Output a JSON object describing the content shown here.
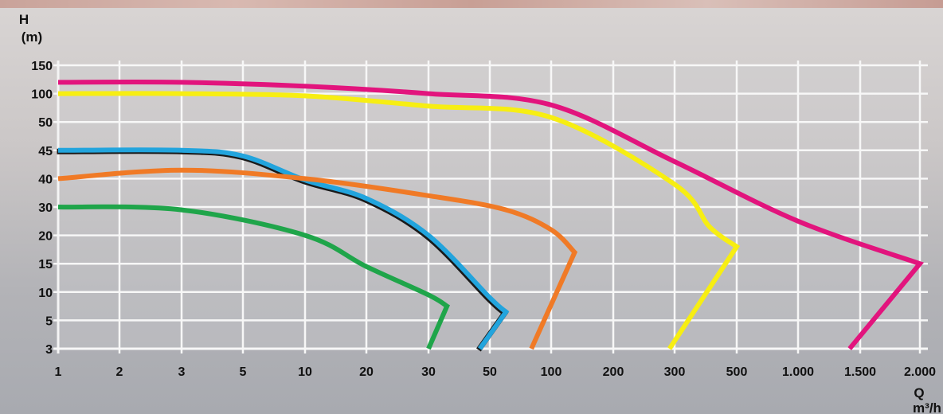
{
  "chart_data": {
    "type": "line",
    "x_axis": {
      "label_top": "Q",
      "label_bottom": "m³/h",
      "ticks": [
        "1",
        "2",
        "3",
        "5",
        "10",
        "20",
        "30",
        "50",
        "100",
        "200",
        "300",
        "500",
        "1.000",
        "1.500",
        "2.000"
      ]
    },
    "y_axis": {
      "label_top": "H",
      "label_bottom": "(m)",
      "ticks": [
        "150",
        "100",
        "50",
        "45",
        "40",
        "30",
        "20",
        "15",
        "10",
        "5",
        "3"
      ]
    },
    "grid": true,
    "series": [
      {
        "color": "#e2147d",
        "points": [
          [
            1,
            120
          ],
          [
            3,
            120
          ],
          [
            10,
            113
          ],
          [
            30,
            100
          ],
          [
            100,
            80
          ],
          [
            300,
            43
          ],
          [
            1000,
            25
          ],
          [
            2000,
            15
          ],
          [
            1400,
            3
          ]
        ]
      },
      {
        "color": "#f7ee12",
        "points": [
          [
            1,
            100
          ],
          [
            3,
            100
          ],
          [
            10,
            96
          ],
          [
            30,
            78
          ],
          [
            100,
            58
          ],
          [
            300,
            38
          ],
          [
            400,
            23
          ],
          [
            500,
            18
          ],
          [
            290,
            3
          ]
        ]
      },
      {
        "color": "#22a4dd",
        "points": [
          [
            1,
            45
          ],
          [
            3,
            45
          ],
          [
            5,
            44
          ],
          [
            10,
            39.5
          ],
          [
            20,
            33
          ],
          [
            30,
            20
          ],
          [
            50,
            9
          ],
          [
            60,
            6.5
          ],
          [
            46,
            3
          ]
        ]
      },
      {
        "color": "#f07a26",
        "points": [
          [
            1,
            40
          ],
          [
            3,
            41.5
          ],
          [
            10,
            40
          ],
          [
            30,
            34
          ],
          [
            60,
            29
          ],
          [
            100,
            22
          ],
          [
            130,
            17
          ],
          [
            80,
            3
          ]
        ]
      },
      {
        "color": "#1fa54a",
        "points": [
          [
            1,
            30
          ],
          [
            3,
            29
          ],
          [
            10,
            20
          ],
          [
            20,
            14.5
          ],
          [
            30,
            9.5
          ],
          [
            35,
            7.5
          ],
          [
            30,
            3
          ]
        ]
      }
    ]
  }
}
